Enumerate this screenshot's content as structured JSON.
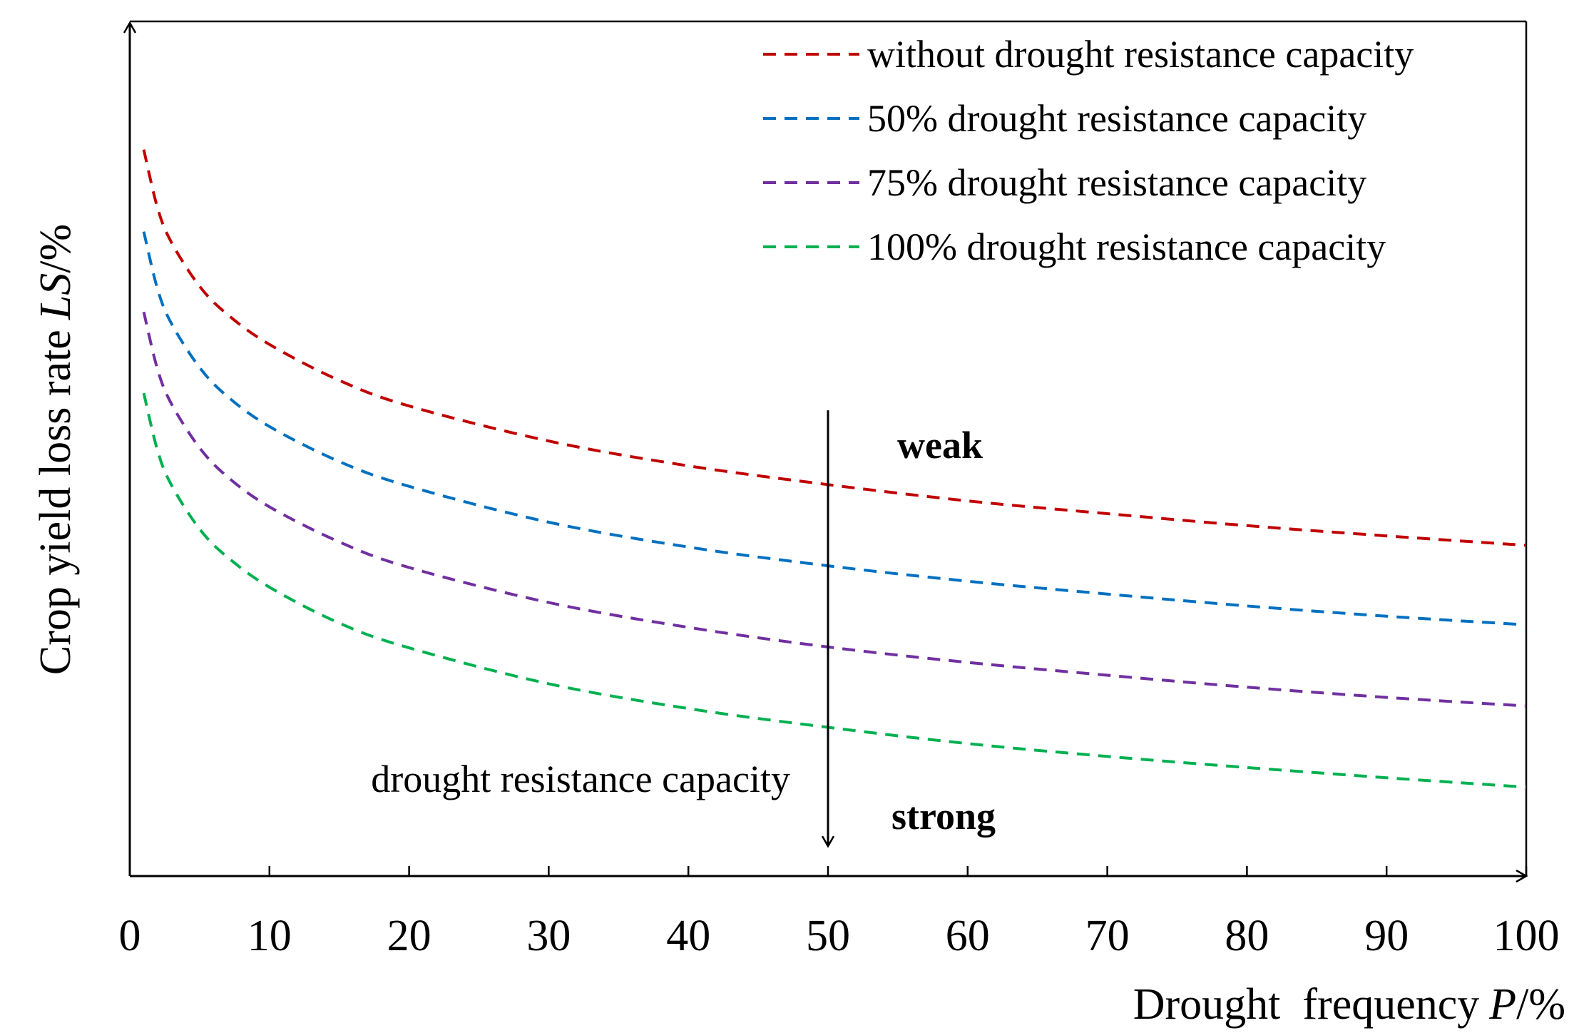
{
  "chart_data": {
    "type": "line",
    "title": "",
    "xlabel": "Drought  frequency",
    "xlabel_var": "P",
    "xlabel_unit": "/%",
    "ylabel": "Crop yield loss rate",
    "ylabel_var": "LS",
    "ylabel_unit": "/%",
    "xlim": [
      0,
      100
    ],
    "ylim": [
      0,
      100
    ],
    "x_ticks": [
      "0",
      "10",
      "20",
      "30",
      "40",
      "50",
      "60",
      "70",
      "80",
      "90",
      "100"
    ],
    "y_ticks": [],
    "grid": false,
    "legend_position": "top-right",
    "x": [
      1,
      2,
      3,
      5,
      7,
      10,
      15,
      20,
      30,
      40,
      50,
      60,
      70,
      80,
      90,
      100
    ],
    "series": [
      {
        "name": "without drought resistance capacity",
        "color": "#c00000",
        "values": [
          85.0,
          78.1,
          74.1,
          69.0,
          65.7,
          62.2,
          58.0,
          55.0,
          50.9,
          48.0,
          45.8,
          43.9,
          42.4,
          41.0,
          39.8,
          38.7
        ]
      },
      {
        "name": "50% drought resistance capacity",
        "color": "#0070c0",
        "values": [
          75.4,
          68.6,
          64.6,
          59.5,
          56.1,
          52.6,
          48.5,
          45.6,
          41.4,
          38.5,
          36.3,
          34.5,
          33.0,
          31.6,
          30.4,
          29.4
        ]
      },
      {
        "name": "75% drought resistance capacity",
        "color": "#7030a0",
        "values": [
          66.0,
          59.2,
          55.2,
          50.1,
          46.7,
          43.2,
          39.1,
          36.1,
          32.0,
          29.1,
          26.8,
          25.0,
          23.5,
          22.1,
          20.9,
          19.9
        ]
      },
      {
        "name": "100% drought resistance capacity",
        "color": "#00b050",
        "values": [
          56.5,
          49.7,
          45.7,
          40.6,
          37.3,
          33.8,
          29.6,
          26.7,
          22.5,
          19.6,
          17.4,
          15.5,
          14.0,
          12.7,
          11.5,
          10.4
        ]
      }
    ],
    "annotations": {
      "arrow_x": 50,
      "arrow_y_from": 54.5,
      "arrow_y_to": 3.5,
      "top_label": "weak",
      "bottom_label": "strong",
      "side_label": "drought resistance capacity"
    }
  }
}
